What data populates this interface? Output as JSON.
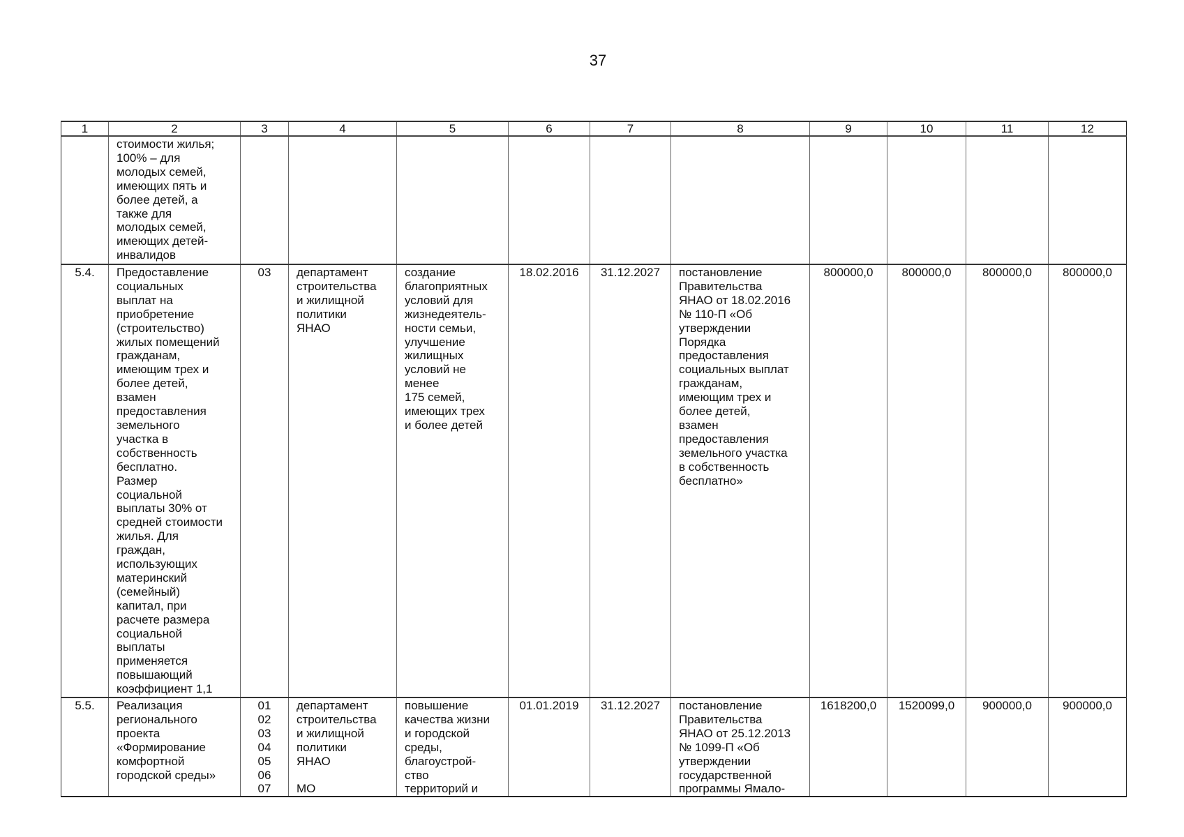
{
  "page_number": "37",
  "table": {
    "headers": [
      "1",
      "2",
      "3",
      "4",
      "5",
      "6",
      "7",
      "8",
      "9",
      "10",
      "11",
      "12"
    ],
    "rows": [
      {
        "num": "",
        "name": "стоимости жилья;\n100% – для\nмолодых семей,\nимеющих пять и\nболее детей, а\nтакже для\nмолодых семей,\nимеющих детей-\nинвалидов",
        "code": "",
        "executor": "",
        "result": "",
        "start": "",
        "end": "",
        "basis": "",
        "v9": "",
        "v10": "",
        "v11": "",
        "v12": ""
      },
      {
        "num": "5.4.",
        "name": "Предоставление\nсоциальных\nвыплат на\nприобретение\n(строительство)\nжилых помещений\nгражданам,\nимеющим трех и\nболее детей,\nвзамен\nпредоставления\nземельного\nучастка в\nсобственность\nбесплатно.\nРазмер\nсоциальной\nвыплаты 30% от\nсредней стоимости\nжилья. Для\nграждан,\nиспользующих\nматеринский\n(семейный)\nкапитал, при\nрасчете размера\nсоциальной\nвыплаты\nприменяется\nповышающий\nкоэффициент 1,1",
        "code": "03",
        "executor": "департамент\nстроительства\nи жилищной\nполитики\nЯНАО",
        "result": "создание\nблагоприятных\nусловий для\nжизнедеятель-\nности семьи,\nулучшение\nжилищных\nусловий не\nменее\n175 семей,\nимеющих трех\nи более детей",
        "start": "18.02.2016",
        "end": "31.12.2027",
        "basis": "постановление\nПравительства\nЯНАО от 18.02.2016\n№ 110-П «Об\nутверждении\nПорядка\nпредоставления\nсоциальных выплат\nгражданам,\nимеющим трех и\nболее детей,\nвзамен\nпредоставления\nземельного участка\nв собственность\nбесплатно»",
        "v9": "800000,0",
        "v10": "800000,0",
        "v11": "800000,0",
        "v12": "800000,0"
      },
      {
        "num": "5.5.",
        "name": "Реализация\nрегионального\nпроекта\n«Формирование\nкомфортной\nгородской среды»",
        "code": "01\n02\n03\n04\n05\n06\n07",
        "executor": "департамент\nстроительства\nи жилищной\nполитики\nЯНАО\n\nМО",
        "result": "повышение\nкачества жизни\nи городской\nсреды,\nблагоустрой-\nство\nтерриторий и",
        "start": "01.01.2019",
        "end": "31.12.2027",
        "basis": "постановление\nПравительства\nЯНАО от 25.12.2013\n№ 1099-П «Об\nутверждении\nгосударственной\nпрограммы Ямало-",
        "v9": "1618200,0",
        "v10": "1520099,0",
        "v11": "900000,0",
        "v12": "900000,0"
      }
    ]
  }
}
